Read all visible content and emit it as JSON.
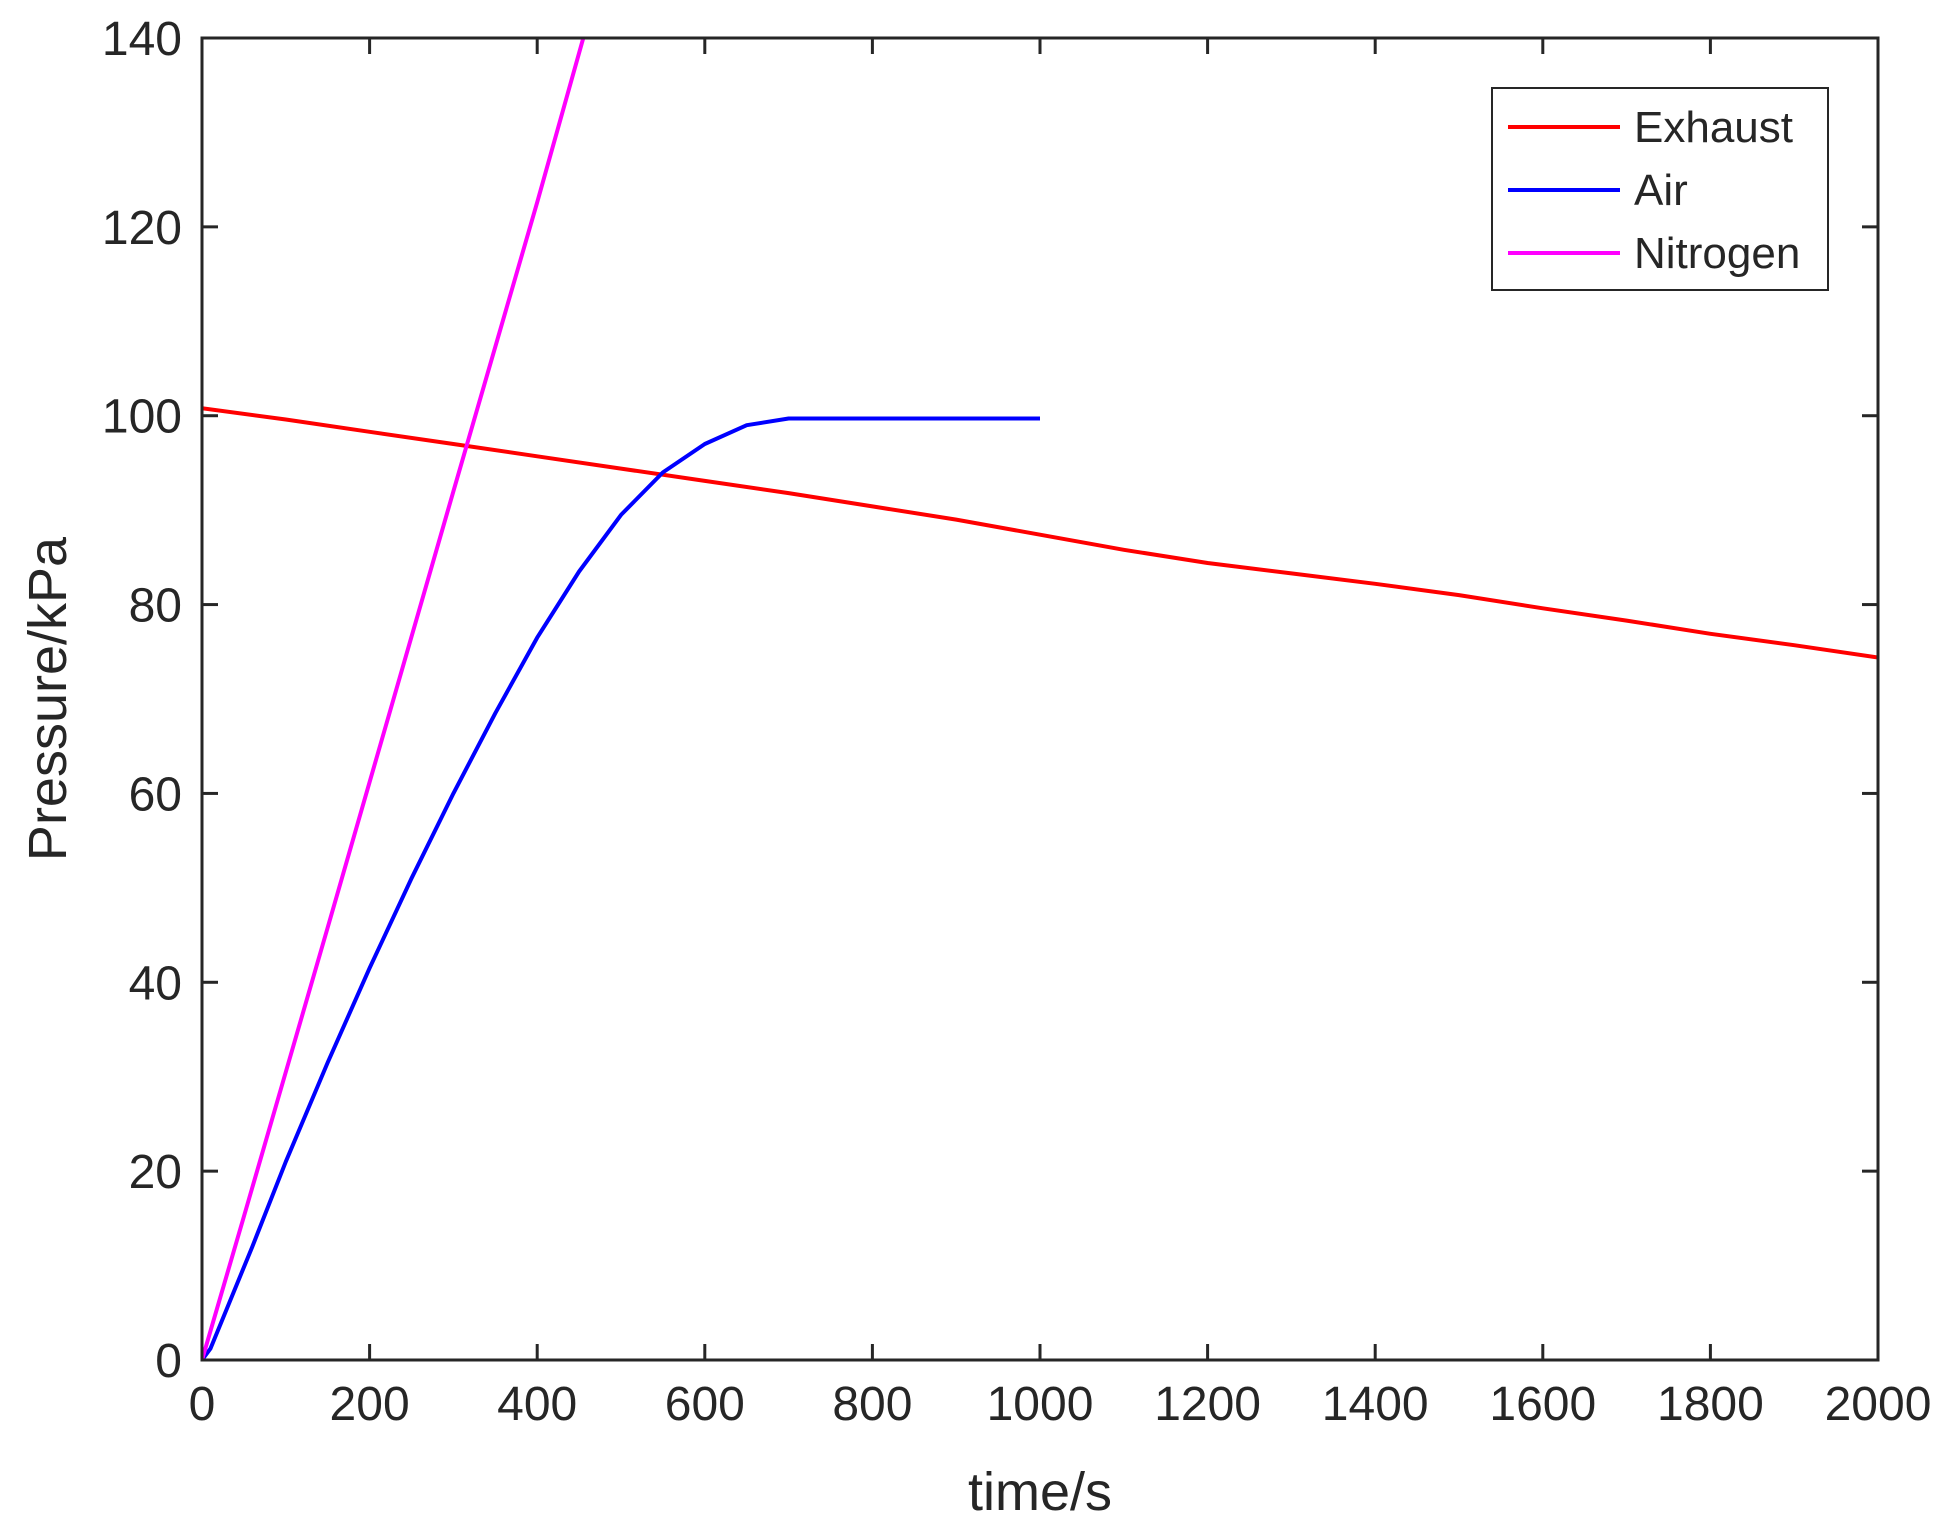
{
  "chart_data": {
    "type": "line",
    "title": "",
    "xlabel": "time/s",
    "ylabel": "Pressure/kPa",
    "xlim": [
      0,
      2000
    ],
    "ylim": [
      0,
      140
    ],
    "xticks": [
      0,
      200,
      400,
      600,
      800,
      1000,
      1200,
      1400,
      1600,
      1800,
      2000
    ],
    "yticks": [
      0,
      20,
      40,
      60,
      80,
      100,
      120,
      140
    ],
    "grid": false,
    "legend_position": "top-right",
    "series": [
      {
        "name": "Exhaust",
        "color": "#ff0000",
        "x": [
          0,
          100,
          200,
          300,
          400,
          500,
          600,
          700,
          800,
          900,
          1000,
          1100,
          1200,
          1300,
          1400,
          1500,
          1600,
          1700,
          1800,
          1900,
          2000
        ],
        "y": [
          100.8,
          99.6,
          98.3,
          97.0,
          95.7,
          94.4,
          93.1,
          91.8,
          90.4,
          89.0,
          87.4,
          85.8,
          84.4,
          83.3,
          82.2,
          81.0,
          79.6,
          78.3,
          76.9,
          75.7,
          74.4
        ]
      },
      {
        "name": "Air",
        "color": "#0000ff",
        "x": [
          0,
          10,
          30,
          60,
          100,
          150,
          200,
          250,
          300,
          350,
          400,
          450,
          500,
          550,
          600,
          650,
          700,
          750,
          800,
          850,
          900,
          950,
          1000
        ],
        "y": [
          0,
          1.2,
          5.5,
          12.0,
          21.0,
          31.5,
          41.5,
          51.0,
          60.0,
          68.5,
          76.5,
          83.5,
          89.5,
          94.0,
          97.0,
          99.0,
          99.7,
          99.7,
          99.7,
          99.7,
          99.7,
          99.7,
          99.7
        ]
      },
      {
        "name": "Nitrogen",
        "color": "#ff00ff",
        "x": [
          0,
          50,
          100,
          150,
          200,
          250,
          300,
          350,
          400,
          455
        ],
        "y": [
          0,
          15.2,
          30.5,
          45.8,
          61.2,
          76.6,
          92.0,
          107.3,
          122.6,
          140.0
        ]
      }
    ]
  },
  "colors": {
    "axis": "#262626",
    "background": "#ffffff"
  }
}
